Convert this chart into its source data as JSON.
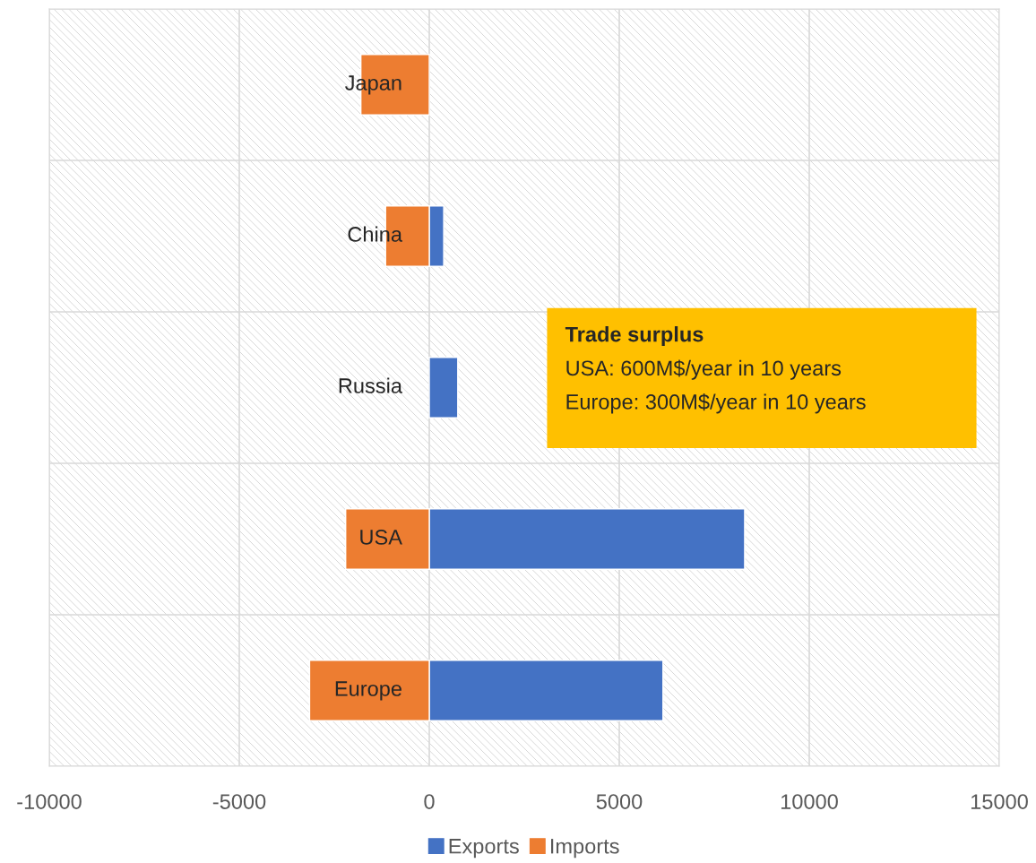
{
  "chart_data": {
    "type": "bar",
    "orientation": "horizontal",
    "categories": [
      "Japan",
      "China",
      "Russia",
      "USA",
      "Europe"
    ],
    "series": [
      {
        "name": "Exports",
        "color": "#4472c4",
        "values": [
          null,
          380,
          750,
          8300,
          6150
        ]
      },
      {
        "name": "Imports",
        "color": "#ed7d31",
        "values": [
          -1800,
          -1150,
          null,
          -2200,
          -3150
        ]
      }
    ],
    "xlim": [
      -10000,
      15000
    ],
    "xticks": [
      -10000,
      -5000,
      0,
      5000,
      10000,
      15000
    ],
    "grid": true,
    "legend": "bottom",
    "stacked": true,
    "annotations": [
      "Trade surplus",
      "USA: 600M$/year in 10 years",
      "Europe: 300M$/year in 10 years"
    ]
  }
}
